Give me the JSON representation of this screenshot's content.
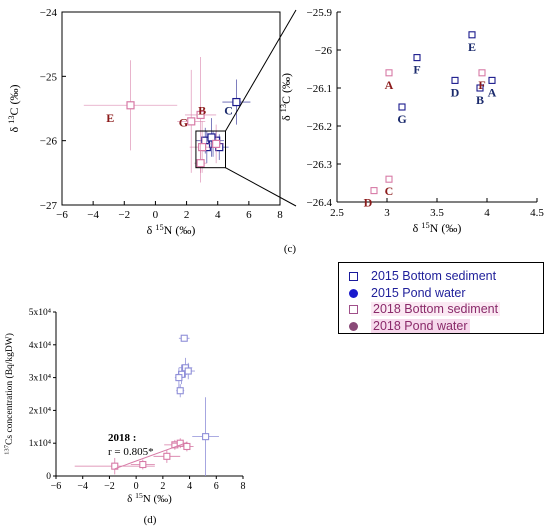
{
  "panels": {
    "c_label": "(c)",
    "d_label": "(d)"
  },
  "colors": {
    "y2015": "#1a1a8c",
    "y2018": "#d77aa6",
    "label2018": "#8b1a1a",
    "label2015": "#1a2a6c"
  },
  "legend": {
    "items": [
      {
        "label": "2015 Bottom sediment",
        "marker": "square",
        "color": "#1a1a9c"
      },
      {
        "label": "2015 Pond water",
        "marker": "circle",
        "color": "#1a1acc"
      },
      {
        "label": "2018 Bottom sediment",
        "marker": "square",
        "color": "#a0508a"
      },
      {
        "label": "2018 Pond water",
        "marker": "circle",
        "color": "#8a4a78"
      }
    ]
  },
  "chart_data": [
    {
      "type": "scatter",
      "id": "c-left",
      "xlabel": "δ 15N (‰)",
      "ylabel": "δ 13C (‰)",
      "xlim": [
        -6,
        8
      ],
      "ylim": [
        -27,
        -24
      ],
      "xticks": [
        "−6",
        "−4",
        "−2",
        "0",
        "2",
        "4",
        "6",
        "8"
      ],
      "yticks": [
        "−24",
        "−25",
        "−26",
        "−27"
      ],
      "annotations": [
        {
          "text": "E",
          "x": -2.9,
          "y": -25.65,
          "year": "2018"
        },
        {
          "text": "G",
          "x": 1.8,
          "y": -25.72,
          "year": "2018"
        },
        {
          "text": "B",
          "x": 3.0,
          "y": -25.53,
          "year": "2018"
        },
        {
          "text": "C",
          "x": 4.7,
          "y": -25.53,
          "year": "2015"
        }
      ],
      "series": [
        {
          "name": "2015 Bottom sediment",
          "points": [
            {
              "x": 3.2,
              "y": -26.0
            },
            {
              "x": 3.3,
              "y": -26.1
            },
            {
              "x": 3.7,
              "y": -26.05
            },
            {
              "x": 3.9,
              "y": -26.0
            },
            {
              "x": 4.1,
              "y": -26.1
            },
            {
              "x": 3.6,
              "y": -25.95
            },
            {
              "x": 5.2,
              "y": -25.4
            }
          ]
        },
        {
          "name": "2018 Bottom sediment",
          "points": [
            {
              "x": -1.6,
              "y": -25.45
            },
            {
              "x": 2.3,
              "y": -25.7
            },
            {
              "x": 2.9,
              "y": -25.6
            },
            {
              "x": 3.0,
              "y": -26.1
            },
            {
              "x": 3.9,
              "y": -26.05
            },
            {
              "x": 2.9,
              "y": -26.35
            }
          ]
        }
      ]
    },
    {
      "type": "scatter",
      "id": "c-right",
      "xlabel": "δ 15N (‰)",
      "ylabel": "δ 13C (‰)",
      "xlim": [
        2.5,
        4.5
      ],
      "ylim": [
        -26.4,
        -25.9
      ],
      "xticks": [
        "2.5",
        "3",
        "3.5",
        "4",
        "4.5"
      ],
      "yticks": [
        "−25.9",
        "−26",
        "−26.1",
        "−26.2",
        "−26.3",
        "−26.4"
      ],
      "series": [
        {
          "name": "2015 Bottom sediment",
          "points": [
            {
              "label": "E",
              "x": 3.85,
              "y": -25.96
            },
            {
              "label": "F",
              "x": 3.3,
              "y": -26.02
            },
            {
              "label": "D",
              "x": 3.68,
              "y": -26.08
            },
            {
              "label": "B",
              "x": 3.93,
              "y": -26.1
            },
            {
              "label": "A",
              "x": 4.05,
              "y": -26.08
            },
            {
              "label": "G",
              "x": 3.15,
              "y": -26.15
            }
          ]
        },
        {
          "name": "2018 Bottom sediment",
          "points": [
            {
              "label": "A",
              "x": 3.02,
              "y": -26.06
            },
            {
              "label": "F",
              "x": 3.95,
              "y": -26.06
            },
            {
              "label": "C",
              "x": 3.02,
              "y": -26.34
            },
            {
              "label": "D",
              "x": 2.87,
              "y": -26.37
            }
          ]
        }
      ]
    },
    {
      "type": "scatter",
      "id": "d",
      "xlabel": "δ 15N (‰)",
      "ylabel": "137Cs concentration (Bq/kgDW)",
      "xlim": [
        -6,
        8
      ],
      "ylim": [
        0,
        50000
      ],
      "xticks": [
        "−6",
        "−4",
        "−2",
        "0",
        "2",
        "4",
        "6",
        "8"
      ],
      "yticks": [
        "0",
        "1x10⁴",
        "2x10⁴",
        "3x10⁴",
        "4x10⁴",
        "5x10⁴"
      ],
      "annotation": {
        "line1": "2018 :",
        "line2": "r = 0.805*"
      },
      "series": [
        {
          "name": "2015 Bottom sediment",
          "points": [
            {
              "x": 3.6,
              "y": 42000
            },
            {
              "x": 3.7,
              "y": 33000
            },
            {
              "x": 3.4,
              "y": 31000
            },
            {
              "x": 3.2,
              "y": 30000
            },
            {
              "x": 3.9,
              "y": 32000
            },
            {
              "x": 3.3,
              "y": 26000
            },
            {
              "x": 5.2,
              "y": 12000
            }
          ]
        },
        {
          "name": "2018 Bottom sediment",
          "points": [
            {
              "x": -1.6,
              "y": 3000
            },
            {
              "x": 0.5,
              "y": 3500
            },
            {
              "x": 2.3,
              "y": 6000
            },
            {
              "x": 2.9,
              "y": 9500
            },
            {
              "x": 3.3,
              "y": 10000
            },
            {
              "x": 3.8,
              "y": 9000
            }
          ]
        }
      ]
    }
  ]
}
